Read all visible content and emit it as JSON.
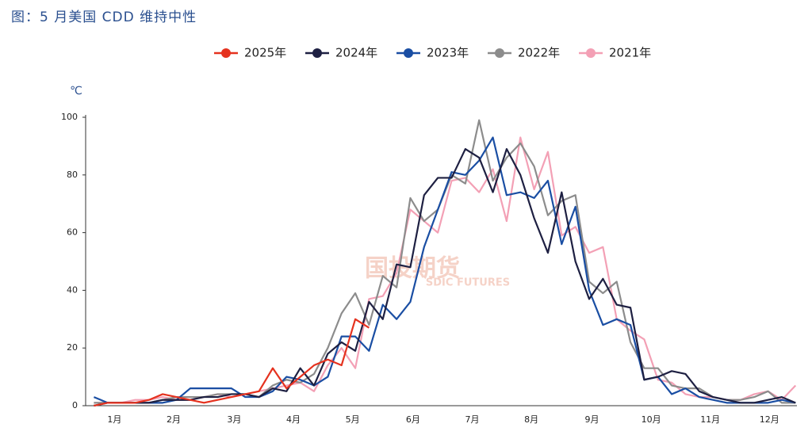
{
  "chart_data": {
    "type": "line",
    "title": "图：5 月美国 CDD 维持中性",
    "y_unit": "℃",
    "watermark": [
      "国投期货",
      "SDIC FUTURES"
    ],
    "x": [
      1,
      2,
      3,
      4,
      5,
      6,
      7,
      8,
      9,
      10,
      11,
      12,
      13,
      14,
      15,
      16,
      17,
      18,
      19,
      20,
      21,
      22,
      23,
      24,
      25,
      26,
      27,
      28,
      29,
      30,
      31,
      32,
      33,
      34,
      35,
      36,
      37,
      38,
      39,
      40,
      41,
      42,
      43,
      44,
      45,
      46,
      47,
      48,
      49,
      50,
      51,
      52
    ],
    "xlim": [
      0.4,
      52.1
    ],
    "xticks": [
      {
        "value": 2.5,
        "label": "1月"
      },
      {
        "value": 6.8,
        "label": "2月"
      },
      {
        "value": 11.2,
        "label": "3月"
      },
      {
        "value": 15.5,
        "label": "4月"
      },
      {
        "value": 19.8,
        "label": "5月"
      },
      {
        "value": 24.2,
        "label": "6月"
      },
      {
        "value": 28.5,
        "label": "7月"
      },
      {
        "value": 32.8,
        "label": "8月"
      },
      {
        "value": 37.2,
        "label": "9月"
      },
      {
        "value": 41.5,
        "label": "10月"
      },
      {
        "value": 45.8,
        "label": "11月"
      },
      {
        "value": 50.1,
        "label": "12月"
      }
    ],
    "ylim": [
      0,
      100
    ],
    "yticks": [
      0,
      20,
      40,
      60,
      80,
      100
    ],
    "grid": false,
    "series": [
      {
        "name": "2025年",
        "color": "#e5321f",
        "values": [
          0,
          1,
          1,
          1,
          2,
          4,
          3,
          2,
          1,
          2,
          3,
          4,
          5,
          13,
          6,
          10,
          14,
          16,
          14,
          30,
          27,
          null,
          null,
          null,
          null,
          null,
          null,
          null,
          null,
          null,
          null,
          null,
          null,
          null,
          null,
          null,
          null,
          null,
          null,
          null,
          null,
          null,
          null,
          null,
          null,
          null,
          null,
          null,
          null,
          null,
          null,
          null
        ]
      },
      {
        "name": "2024年",
        "color": "#1e2042",
        "values": [
          0,
          1,
          1,
          1,
          1,
          2,
          2,
          2,
          3,
          3,
          4,
          4,
          3,
          6,
          5,
          13,
          7,
          18,
          22,
          19,
          36,
          30,
          49,
          48,
          73,
          79,
          79,
          89,
          86,
          74,
          89,
          80,
          65,
          53,
          74,
          50,
          37,
          44,
          35,
          34,
          9,
          10,
          12,
          11,
          5,
          3,
          2,
          1,
          1,
          2,
          3,
          1
        ]
      },
      {
        "name": "2023年",
        "color": "#1a4ea3",
        "values": [
          3,
          1,
          1,
          1,
          1,
          1,
          2,
          6,
          6,
          6,
          6,
          3,
          3,
          5,
          10,
          9,
          7,
          10,
          24,
          24,
          19,
          35,
          30,
          36,
          55,
          68,
          81,
          80,
          85,
          93,
          73,
          74,
          72,
          78,
          56,
          69,
          40,
          28,
          30,
          28,
          9,
          10,
          4,
          6,
          3,
          2,
          1,
          1,
          1,
          1,
          2,
          1
        ]
      },
      {
        "name": "2022年",
        "color": "#8c8c8c",
        "values": [
          1,
          1,
          1,
          1,
          1,
          2,
          3,
          3,
          3,
          4,
          4,
          4,
          3,
          7,
          9,
          8,
          11,
          20,
          32,
          39,
          28,
          45,
          41,
          72,
          64,
          68,
          80,
          77,
          99,
          78,
          86,
          91,
          83,
          66,
          71,
          73,
          43,
          39,
          43,
          22,
          13,
          13,
          7,
          6,
          6,
          3,
          2,
          2,
          3,
          5,
          1,
          1
        ]
      },
      {
        "name": "2021年",
        "color": "#f3a0b5",
        "values": [
          1,
          1,
          1,
          2,
          2,
          3,
          2,
          2,
          3,
          4,
          3,
          4,
          5,
          6,
          7,
          8,
          5,
          14,
          20,
          13,
          37,
          38,
          46,
          68,
          64,
          60,
          78,
          79,
          74,
          82,
          64,
          93,
          75,
          88,
          59,
          62,
          53,
          55,
          30,
          26,
          23,
          9,
          8,
          4,
          3,
          3,
          2,
          2,
          4,
          5,
          2,
          7
        ]
      }
    ]
  }
}
